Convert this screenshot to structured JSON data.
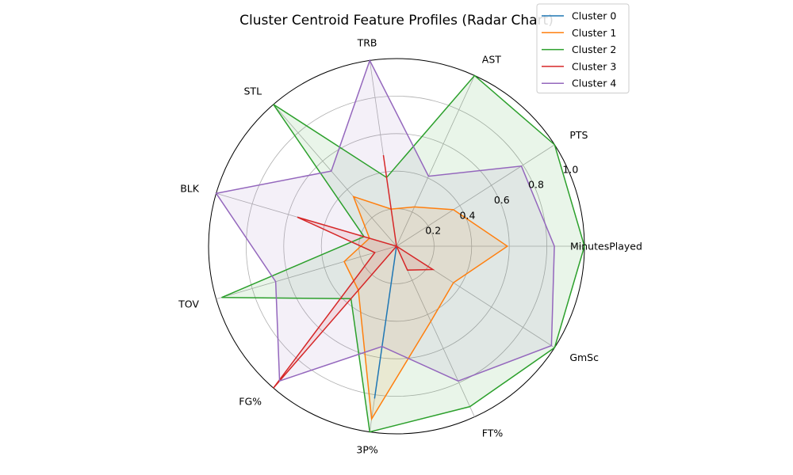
{
  "chart_data": {
    "type": "radar",
    "title": "Cluster Centroid Feature Profiles (Radar Chart)",
    "categories": [
      "MinutesPlayed",
      "PTS",
      "AST",
      "TRB",
      "STL",
      "BLK",
      "TOV",
      "FG%",
      "3P%",
      "FT%",
      "GmSc"
    ],
    "r_ticks": [
      "0.2",
      "0.4",
      "0.6",
      "0.8",
      "1.0"
    ],
    "r_tick_values": [
      0.2,
      0.4,
      0.6,
      0.8,
      1.0
    ],
    "rlim": [
      0,
      1.0
    ],
    "grid": true,
    "legend_position": "top-right",
    "series": [
      {
        "name": "Cluster 0",
        "color": "#1f77b4",
        "values": [
          0.0,
          0.0,
          0.0,
          0.0,
          0.0,
          0.0,
          0.0,
          0.0,
          0.82,
          0.0,
          0.0
        ]
      },
      {
        "name": "Cluster 1",
        "color": "#ff7f0e",
        "values": [
          0.59,
          0.36,
          0.23,
          0.2,
          0.35,
          0.15,
          0.29,
          0.31,
          0.93,
          0.44,
          0.36
        ]
      },
      {
        "name": "Cluster 2",
        "color": "#2ca02c",
        "values": [
          1.0,
          1.0,
          1.0,
          0.37,
          1.0,
          0.18,
          0.97,
          0.37,
          1.0,
          0.94,
          1.0
        ]
      },
      {
        "name": "Cluster 3",
        "color": "#d62728",
        "values": [
          0.0,
          0.0,
          0.0,
          0.49,
          0.0,
          0.55,
          0.12,
          1.0,
          0.0,
          0.14,
          0.23
        ]
      },
      {
        "name": "Cluster 4",
        "color": "#9467bd",
        "values": [
          0.84,
          0.79,
          0.41,
          1.0,
          0.53,
          1.0,
          0.67,
          0.95,
          0.54,
          0.79,
          0.98
        ]
      }
    ]
  }
}
